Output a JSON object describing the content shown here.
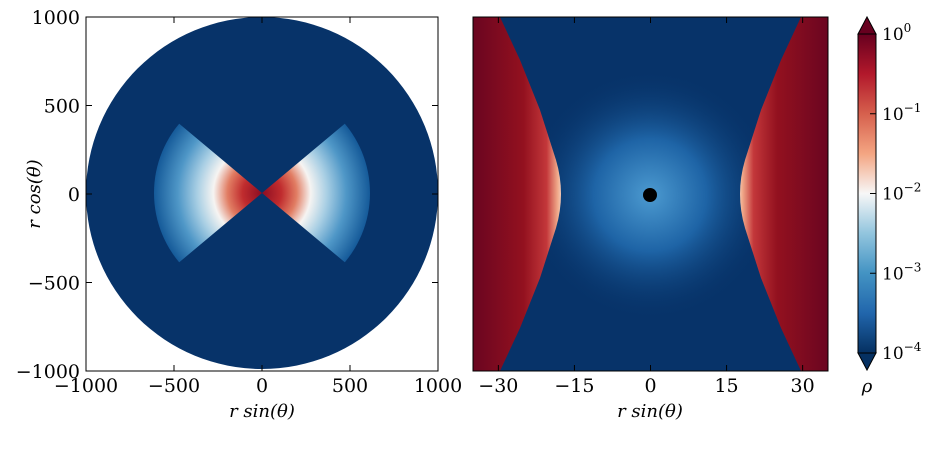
{
  "chart_data": [
    {
      "type": "heatmap",
      "panel": "left",
      "title": "",
      "xlabel": "r sin(θ)",
      "ylabel": "r cos(θ)",
      "xlim": [
        -1000,
        1000
      ],
      "ylim": [
        -1000,
        1000
      ],
      "xticks": [
        -1000,
        -500,
        0,
        500,
        1000
      ],
      "xtick_labels": [
        "−1000",
        "−500",
        "0",
        "500",
        "1000"
      ],
      "yticks": [
        1000,
        500,
        0,
        -500,
        -1000
      ],
      "ytick_labels": [
        "1000",
        "500",
        "0",
        "−500",
        "−1000"
      ],
      "domain_radius": 1000,
      "background_density": 0.0001,
      "peak_density": 1.0,
      "feature": "bipolar density lobes along equator",
      "lobe_outer_radius": 620,
      "lobe_half_opening_deg": 40
    },
    {
      "type": "heatmap",
      "panel": "right",
      "title": "",
      "xlabel": "r sin(θ)",
      "ylabel": "",
      "xlim": [
        -35,
        35
      ],
      "ylim": [
        -35,
        35
      ],
      "xticks": [
        -30,
        -15,
        0,
        15,
        30
      ],
      "xtick_labels": [
        "−30",
        "−15",
        "0",
        "15",
        "30"
      ],
      "central_object_radius": 1.2,
      "inner_edge_x": 17.5,
      "background_density": 0.0001,
      "peak_density": 1.0,
      "feature": "dense flow beyond hyperbolic boundary on both sides, diffuse halo around central object"
    }
  ],
  "colorbar": {
    "label": "ρ",
    "scale": "log",
    "min": 0.0001,
    "max": 1,
    "ticks": [
      {
        "base": "10",
        "exp": "0",
        "value": 1
      },
      {
        "base": "10",
        "exp": "−1",
        "value": 0.1
      },
      {
        "base": "10",
        "exp": "−2",
        "value": 0.01
      },
      {
        "base": "10",
        "exp": "−3",
        "value": 0.001
      },
      {
        "base": "10",
        "exp": "−4",
        "value": 0.0001
      }
    ],
    "colormap": [
      "#053061",
      "#2166ac",
      "#4393c3",
      "#92c5de",
      "#f7f7f7",
      "#f4a582",
      "#d6604d",
      "#b2182b",
      "#67001f"
    ]
  }
}
